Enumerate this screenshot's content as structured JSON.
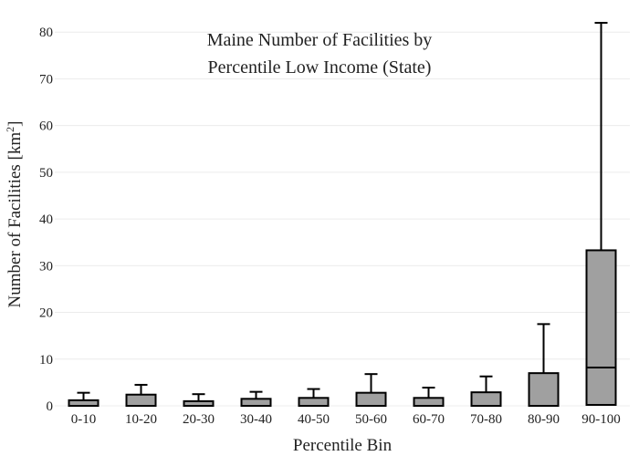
{
  "chart_data": {
    "type": "box",
    "title_lines": [
      "Maine Number of Facilities by",
      "Percentile Low Income (State)"
    ],
    "xlabel": "Percentile Bin",
    "ylabel_main": "Number of Facilities  [km",
    "ylabel_sup": "2",
    "ylabel_end": "]",
    "ylim": [
      0,
      82
    ],
    "yticks": [
      0,
      10,
      20,
      30,
      40,
      50,
      60,
      70,
      80
    ],
    "grid": true,
    "box_fill": "#a0a0a0",
    "box_stroke": "#000000",
    "categories": [
      "0-10",
      "10-20",
      "20-30",
      "30-40",
      "40-50",
      "50-60",
      "60-70",
      "70-80",
      "80-90",
      "90-100"
    ],
    "boxes": [
      {
        "min": 0,
        "q1": 0,
        "median": 0,
        "q3": 1.2,
        "max": 2.8
      },
      {
        "min": 0,
        "q1": 0,
        "median": 0,
        "q3": 2.4,
        "max": 4.5
      },
      {
        "min": 0,
        "q1": 0,
        "median": 0,
        "q3": 1.0,
        "max": 2.5
      },
      {
        "min": 0,
        "q1": 0,
        "median": 0,
        "q3": 1.5,
        "max": 3.0
      },
      {
        "min": 0,
        "q1": 0,
        "median": 0,
        "q3": 1.7,
        "max": 3.6
      },
      {
        "min": 0,
        "q1": 0,
        "median": 0,
        "q3": 2.8,
        "max": 6.8
      },
      {
        "min": 0,
        "q1": 0,
        "median": 0,
        "q3": 1.7,
        "max": 3.9
      },
      {
        "min": 0,
        "q1": 0,
        "median": 0,
        "q3": 2.9,
        "max": 6.3
      },
      {
        "min": 0,
        "q1": 0,
        "median": 0,
        "q3": 7.0,
        "max": 17.5
      },
      {
        "min": 0.2,
        "q1": 0.2,
        "median": 8.2,
        "q3": 33.3,
        "max": 82
      }
    ]
  }
}
